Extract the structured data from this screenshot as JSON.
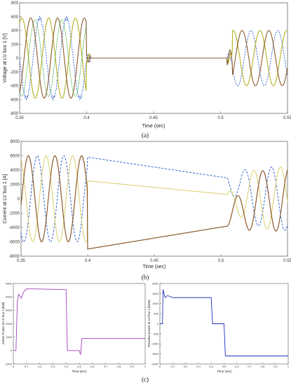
{
  "chart_data": [
    {
      "id": "a",
      "type": "line",
      "caption": "(a)",
      "xlabel": "Time (sec)",
      "ylabel": "Voltage at LV bus 1 [V]",
      "xlim": [
        0.35,
        0.55
      ],
      "ylim": [
        -800,
        800
      ],
      "xticks": [
        0.35,
        0.4,
        0.45,
        0.5,
        0.55
      ],
      "xtick_labels": [
        "0.35",
        "0.4",
        "0.45",
        "0.5",
        "0.55"
      ],
      "yticks": [
        -800,
        -600,
        -400,
        -200,
        0,
        200,
        400,
        600,
        800
      ],
      "grid": false,
      "colors": [
        "#3366cc",
        "#b5b020",
        "#8b5a2b",
        "#2ca02c"
      ],
      "frequency_hz": 50,
      "amplitude_pre": 580,
      "amplitude_post": 400,
      "t_fault_start": 0.4,
      "t_fault_end": 0.505
    },
    {
      "id": "b",
      "type": "line",
      "caption": "(b)",
      "xlabel": "Time (sec)",
      "ylabel": "Current at LV bus 1 [A]",
      "xlim": [
        0.35,
        0.55
      ],
      "ylim": [
        -8000,
        8000
      ],
      "xticks": [
        0.35,
        0.4,
        0.45,
        0.5,
        0.55
      ],
      "xtick_labels": [
        "0.35",
        "0.4",
        "0.45",
        "0.5",
        "0.55"
      ],
      "yticks": [
        -8000,
        -6000,
        -4000,
        -2000,
        0,
        2000,
        4000,
        6000,
        8000
      ],
      "grid": false,
      "colors": [
        "#3366cc",
        "#d8cf6a",
        "#8b5a2b"
      ],
      "frequency_hz": 50,
      "amplitude_pre": 6000,
      "amplitude_post": 4500,
      "t_fault_start": 0.4,
      "t_fault_end": 0.505,
      "fault_levels": [
        {
          "start": 5800,
          "end": 2900
        },
        {
          "start": 2500,
          "end": 600
        },
        {
          "start": -7000,
          "end": -3800
        }
      ]
    },
    {
      "id": "c1",
      "type": "line",
      "xlabel": "Time (sec)",
      "ylabel": "Active Power at LV bus 1 [kW]",
      "xlim": [
        0,
        1
      ],
      "ylim": [
        -1000,
        5000
      ],
      "xticks": [
        0,
        0.1,
        0.2,
        0.3,
        0.4,
        0.5,
        0.6,
        0.7,
        0.8,
        0.9,
        1
      ],
      "xtick_labels": [
        "0",
        "0.1",
        "0.2",
        "0.3",
        "0.4",
        "0.5",
        "0.6",
        "0.7",
        "0.8",
        "0.9",
        "1"
      ],
      "yticks": [
        -1000,
        0,
        1000,
        2000,
        3000,
        4000,
        5000
      ],
      "grid": false,
      "color": "#a040c0",
      "x": [
        0,
        0.02,
        0.03,
        0.04,
        0.06,
        0.08,
        0.1,
        0.15,
        0.4,
        0.41,
        0.5,
        0.51,
        0.52,
        0.55,
        1.0
      ],
      "y": [
        0,
        0,
        3600,
        4200,
        3900,
        4400,
        4600,
        4600,
        4550,
        0,
        0,
        -300,
        900,
        900,
        900
      ]
    },
    {
      "id": "c2",
      "type": "line",
      "xlabel": "Time (sec)",
      "ylabel": "Reactive power at LV bus 1 [kVar]",
      "xlim": [
        0,
        1
      ],
      "ylim": [
        -2000,
        2000
      ],
      "xticks": [
        0,
        0.1,
        0.2,
        0.3,
        0.4,
        0.5,
        0.6,
        0.7,
        0.8,
        0.9,
        1
      ],
      "xtick_labels": [
        "0",
        "0.1",
        "0.2",
        "0.3",
        "0.4",
        "0.5",
        "0.6",
        "0.7",
        "0.8",
        "0.9",
        "1"
      ],
      "yticks": [
        -2000,
        -1500,
        -1000,
        -500,
        0,
        500,
        1000,
        1500,
        2000
      ],
      "grid": false,
      "color": "#2030c0",
      "x": [
        0,
        0.02,
        0.025,
        0.04,
        0.06,
        0.1,
        0.4,
        0.41,
        0.5,
        0.51,
        0.55,
        1.0
      ],
      "y": [
        0,
        0,
        1700,
        1300,
        1400,
        1300,
        1300,
        0,
        0,
        -1600,
        -1600,
        -1600
      ]
    }
  ],
  "caption_c": "(c)"
}
